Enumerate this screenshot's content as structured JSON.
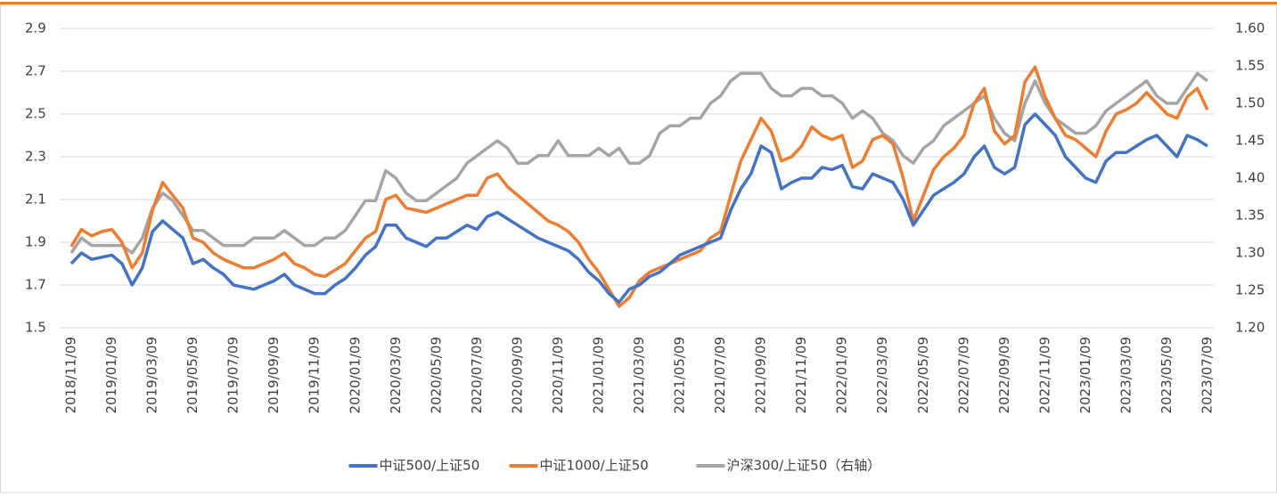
{
  "chart_data": {
    "type": "line",
    "categories": [
      "2018/11/09",
      null,
      null,
      null,
      "2019/01/09",
      null,
      null,
      null,
      "2019/03/09",
      null,
      null,
      null,
      "2019/05/09",
      null,
      null,
      null,
      "2019/07/09",
      null,
      null,
      null,
      "2019/09/09",
      null,
      null,
      null,
      "2019/11/09",
      null,
      null,
      null,
      "2020/01/09",
      null,
      null,
      null,
      "2020/03/09",
      null,
      null,
      null,
      "2020/05/09",
      null,
      null,
      null,
      "2020/07/09",
      null,
      null,
      null,
      "2020/09/09",
      null,
      null,
      null,
      "2020/11/09",
      null,
      null,
      null,
      "2021/01/09",
      null,
      null,
      null,
      "2021/03/09",
      null,
      null,
      null,
      "2021/05/09",
      null,
      null,
      null,
      "2021/07/09",
      null,
      null,
      null,
      "2021/09/09",
      null,
      null,
      null,
      "2021/11/09",
      null,
      null,
      null,
      "2022/01/09",
      null,
      null,
      null,
      "2022/03/09",
      null,
      null,
      null,
      "2022/05/09",
      null,
      null,
      null,
      "2022/07/09",
      null,
      null,
      null,
      "2022/09/09",
      null,
      null,
      null,
      "2022/11/09",
      null,
      null,
      null,
      "2023/01/09",
      null,
      null,
      null,
      "2023/03/09",
      null,
      null,
      null,
      "2023/05/09",
      null,
      null,
      null,
      "2023/07/09"
    ],
    "series": [
      {
        "name": "中证500/上证50",
        "color": "#4472c4",
        "values": [
          1.8,
          1.85,
          1.82,
          1.83,
          1.84,
          1.8,
          1.7,
          1.78,
          1.95,
          2.0,
          1.96,
          1.92,
          1.8,
          1.82,
          1.78,
          1.75,
          1.7,
          1.69,
          1.68,
          1.7,
          1.72,
          1.75,
          1.7,
          1.68,
          1.66,
          1.66,
          1.7,
          1.73,
          1.78,
          1.84,
          1.88,
          1.98,
          1.98,
          1.92,
          1.9,
          1.88,
          1.92,
          1.92,
          1.95,
          1.98,
          1.96,
          2.02,
          2.04,
          2.01,
          1.98,
          1.95,
          1.92,
          1.9,
          1.88,
          1.86,
          1.82,
          1.76,
          1.72,
          1.66,
          1.62,
          1.68,
          1.7,
          1.74,
          1.76,
          1.8,
          1.84,
          1.86,
          1.88,
          1.9,
          1.92,
          2.05,
          2.15,
          2.22,
          2.35,
          2.32,
          2.15,
          2.18,
          2.2,
          2.2,
          2.25,
          2.24,
          2.26,
          2.16,
          2.15,
          2.22,
          2.2,
          2.18,
          2.1,
          1.98,
          2.05,
          2.12,
          2.15,
          2.18,
          2.22,
          2.3,
          2.35,
          2.25,
          2.22,
          2.25,
          2.45,
          2.5,
          2.45,
          2.4,
          2.3,
          2.25,
          2.2,
          2.18,
          2.28,
          2.32,
          2.32,
          2.35,
          2.38,
          2.4,
          2.35,
          2.3,
          2.4,
          2.38,
          2.35
        ]
      },
      {
        "name": "中证1000/上证50",
        "color": "#ed7d31",
        "values": [
          1.88,
          1.96,
          1.93,
          1.95,
          1.96,
          1.9,
          1.78,
          1.85,
          2.05,
          2.18,
          2.12,
          2.06,
          1.92,
          1.9,
          1.85,
          1.82,
          1.8,
          1.78,
          1.78,
          1.8,
          1.82,
          1.85,
          1.8,
          1.78,
          1.75,
          1.74,
          1.77,
          1.8,
          1.86,
          1.92,
          1.95,
          2.1,
          2.12,
          2.06,
          2.05,
          2.04,
          2.06,
          2.08,
          2.1,
          2.12,
          2.12,
          2.2,
          2.22,
          2.16,
          2.12,
          2.08,
          2.04,
          2.0,
          1.98,
          1.95,
          1.9,
          1.82,
          1.76,
          1.68,
          1.6,
          1.64,
          1.72,
          1.76,
          1.78,
          1.8,
          1.82,
          1.84,
          1.86,
          1.92,
          1.95,
          2.12,
          2.28,
          2.38,
          2.48,
          2.42,
          2.28,
          2.3,
          2.35,
          2.44,
          2.4,
          2.38,
          2.4,
          2.25,
          2.28,
          2.38,
          2.4,
          2.36,
          2.2,
          2.0,
          2.12,
          2.24,
          2.3,
          2.34,
          2.4,
          2.55,
          2.62,
          2.42,
          2.36,
          2.4,
          2.65,
          2.72,
          2.58,
          2.48,
          2.4,
          2.38,
          2.34,
          2.3,
          2.42,
          2.5,
          2.52,
          2.55,
          2.6,
          2.55,
          2.5,
          2.48,
          2.58,
          2.62,
          2.52
        ]
      },
      {
        "name": "沪深300/上证50（右轴）",
        "color": "#a5a5a5",
        "axis": "y2",
        "values": [
          1.3,
          1.32,
          1.31,
          1.31,
          1.31,
          1.31,
          1.3,
          1.32,
          1.36,
          1.38,
          1.37,
          1.35,
          1.33,
          1.33,
          1.32,
          1.31,
          1.31,
          1.31,
          1.32,
          1.32,
          1.32,
          1.33,
          1.32,
          1.31,
          1.31,
          1.32,
          1.32,
          1.33,
          1.35,
          1.37,
          1.37,
          1.41,
          1.4,
          1.38,
          1.37,
          1.37,
          1.38,
          1.39,
          1.4,
          1.42,
          1.43,
          1.44,
          1.45,
          1.44,
          1.42,
          1.42,
          1.43,
          1.43,
          1.45,
          1.43,
          1.43,
          1.43,
          1.44,
          1.43,
          1.44,
          1.42,
          1.42,
          1.43,
          1.46,
          1.47,
          1.47,
          1.48,
          1.48,
          1.5,
          1.51,
          1.53,
          1.54,
          1.54,
          1.54,
          1.52,
          1.51,
          1.51,
          1.52,
          1.52,
          1.51,
          1.51,
          1.5,
          1.48,
          1.49,
          1.48,
          1.46,
          1.45,
          1.43,
          1.42,
          1.44,
          1.45,
          1.47,
          1.48,
          1.49,
          1.5,
          1.51,
          1.48,
          1.46,
          1.45,
          1.5,
          1.53,
          1.5,
          1.48,
          1.47,
          1.46,
          1.46,
          1.47,
          1.49,
          1.5,
          1.51,
          1.52,
          1.53,
          1.51,
          1.5,
          1.5,
          1.52,
          1.54,
          1.53
        ]
      }
    ],
    "ylim": [
      1.5,
      2.9
    ],
    "yticks": [
      1.5,
      1.7,
      1.9,
      2.1,
      2.3,
      2.5,
      2.7,
      2.9
    ],
    "y2lim": [
      1.2,
      1.6
    ],
    "y2ticks": [
      {
        "value": 1.2,
        "label": "1.20"
      },
      {
        "value": 1.25,
        "label": "1.25"
      },
      {
        "value": 1.3,
        "label": "1.30"
      },
      {
        "value": 1.35,
        "label": "1.35"
      },
      {
        "value": 1.4,
        "label": "1.40"
      },
      {
        "value": 1.45,
        "label": "1.45"
      },
      {
        "value": 1.5,
        "label": "1.50"
      },
      {
        "value": 1.55,
        "label": "1.55"
      },
      {
        "value": 1.6,
        "label": "1.60"
      }
    ],
    "grid": true,
    "legend": "bottom"
  }
}
